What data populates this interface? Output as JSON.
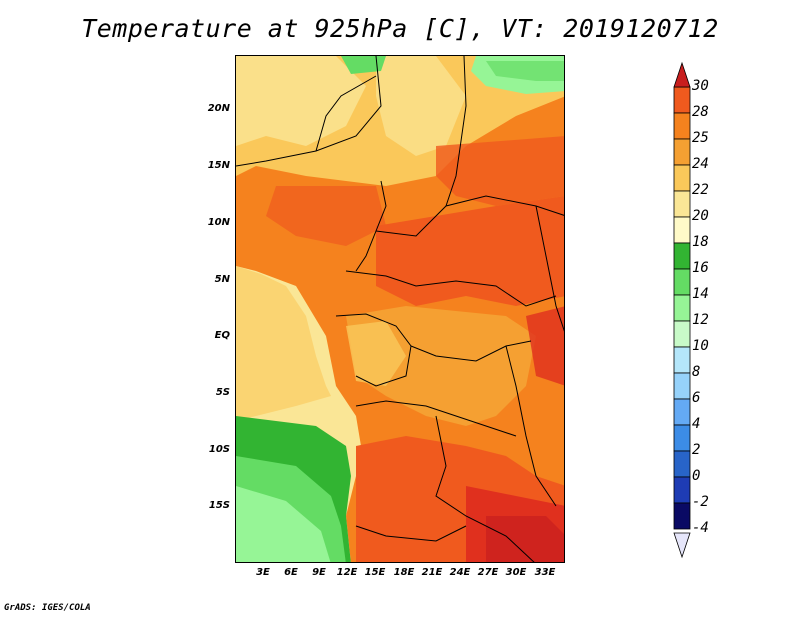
{
  "title": "Temperature at 925hPa [C], VT: 2019120712",
  "credit": "GrADS: IGES/COLA",
  "lat_ticks": [
    "20N",
    "15N",
    "10N",
    "5N",
    "EQ",
    "5S",
    "10S",
    "15S"
  ],
  "lon_ticks": [
    "3E",
    "6E",
    "9E",
    "12E",
    "15E",
    "18E",
    "21E",
    "24E",
    "27E",
    "30E",
    "33E"
  ],
  "colorbar": {
    "labels": [
      "30",
      "28",
      "25",
      "24",
      "22",
      "20",
      "18",
      "16",
      "14",
      "12",
      "10",
      "8",
      "6",
      "4",
      "2",
      "0",
      "-2",
      "-4"
    ],
    "colors": [
      "#e0301e",
      "#f05a1e",
      "#f5821e",
      "#f5a032",
      "#fac85a",
      "#fae696",
      "#fffac8",
      "#32b432",
      "#64dc64",
      "#96f596",
      "#c8fac8",
      "#b4e6fa",
      "#96d2fa",
      "#64aaf5",
      "#3c8ce6",
      "#2864c8",
      "#1e3cb4",
      "#0a0a64"
    ],
    "top_arrow_color": "#c81e1e",
    "bottom_arrow_color": "#e6e6fa"
  }
}
